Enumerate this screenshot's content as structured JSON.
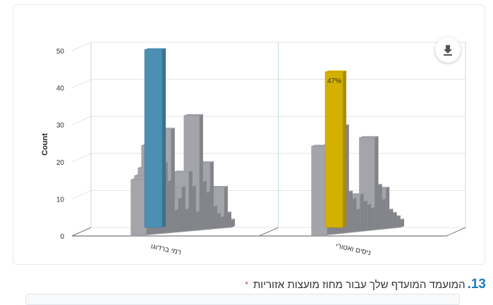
{
  "chart_data": {
    "type": "bar",
    "ylabel": "Count",
    "ylim": [
      0,
      50
    ],
    "yticks": [
      0,
      10,
      20,
      30,
      40,
      50
    ],
    "categories": [
      "רמי ברדוגו",
      "ניסים ואטורי"
    ],
    "highlight_values": [
      48,
      42
    ],
    "highlight_colors": [
      "#4b8fb2",
      "#d4b000"
    ],
    "data_labels": [
      "",
      "47%"
    ],
    "other_values": [
      [
        15,
        16,
        18,
        24,
        34,
        19,
        14,
        28,
        6,
        9,
        12,
        6,
        16,
        12,
        5,
        31,
        13,
        10,
        18,
        6,
        4,
        3,
        11,
        4,
        2
      ],
      [
        24,
        15,
        15,
        24,
        11,
        29,
        11,
        9,
        6,
        10,
        8,
        7,
        6,
        25,
        12,
        8,
        11,
        5,
        4,
        3,
        2
      ]
    ],
    "other_color": "#a3a5ab",
    "grid": true
  },
  "question": {
    "number": "13.",
    "text": "המועמד המועדף שלך עבור מחוז מועצות אזוריות",
    "required_mark": "*"
  },
  "icons": {
    "download": "download-icon"
  }
}
